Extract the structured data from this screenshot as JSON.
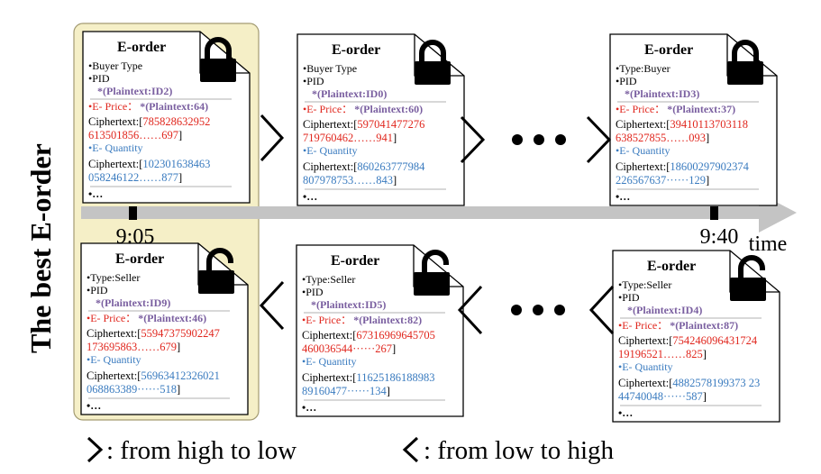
{
  "side_title": "The best E-order",
  "time_label": "time",
  "timeline": {
    "start_time": "9:05",
    "end_time": "9:40"
  },
  "legend": {
    "gt_symbol": ">",
    "gt_text": ": from high to low",
    "lt_symbol": "<",
    "lt_text": ": from low to high"
  },
  "colors": {
    "price": "#e0261d",
    "quantity": "#3a7bbf",
    "plaintext": "#7a5fa0",
    "highlight": "#f5efc7",
    "highlight_border": "#a39b72",
    "arrow": "#c4c4c4"
  },
  "orders": [
    {
      "title": "E-order",
      "type": "•Buyer Type",
      "pid_label": "•PID",
      "pid": "*(Plaintext:ID2)",
      "price_label": "•E- Price：",
      "price_plain": "*(Plaintext:64)",
      "price_cipher_label": "Ciphertext:[",
      "price_cipher_1": "785828632952",
      "price_cipher_2": "613501856……697",
      "price_cipher_end": "]",
      "qty_label": "•E- Quantity",
      "qty_cipher_label": "Ciphertext:[",
      "qty_cipher_1": "102301638463",
      "qty_cipher_2": "058246122……877",
      "qty_cipher_end": "]",
      "more": "•…",
      "lock": "closed"
    },
    {
      "title": "E-order",
      "type": "•Buyer Type",
      "pid_label": "•PID",
      "pid": "*(Plaintext:ID0)",
      "price_label": "•E- Price：",
      "price_plain": "*(Plaintext:60)",
      "price_cipher_label": "Ciphertext:[",
      "price_cipher_1": "597041477276",
      "price_cipher_2": "719760462……941",
      "price_cipher_end": "]",
      "qty_label": "•E- Quantity",
      "qty_cipher_label": "Ciphertext:[",
      "qty_cipher_1": "860263777984",
      "qty_cipher_2": "807978753……843",
      "qty_cipher_end": "]",
      "more": "•…",
      "lock": "closed"
    },
    {
      "title": "E-order",
      "type": "•Type:Buyer",
      "pid_label": "•PID",
      "pid": "*(Plaintext:ID3)",
      "price_label": "•E- Price：",
      "price_plain": "*(Plaintext:37)",
      "price_cipher_label": "Ciphertext:[",
      "price_cipher_1": "39410113703118",
      "price_cipher_2": "638527855……093",
      "price_cipher_end": "]",
      "qty_label": "•E- Quantity",
      "qty_cipher_label": "Ciphertext:[",
      "qty_cipher_1": "18600297902374",
      "qty_cipher_2": "226567637······129",
      "qty_cipher_end": "]",
      "more": "•…",
      "lock": "closed"
    },
    {
      "title": "E-order",
      "type": "•Type:Seller",
      "pid_label": "•PID",
      "pid": "*(Plaintext:ID9)",
      "price_label": "•E- Price：",
      "price_plain": "*(Plaintext:46)",
      "price_cipher_label": "Ciphertext:[",
      "price_cipher_1": "55947375902247",
      "price_cipher_2": "173695863……679",
      "price_cipher_end": "]",
      "qty_label": "•E- Quantity",
      "qty_cipher_label": "Ciphertext:[",
      "qty_cipher_1": "56963412326021",
      "qty_cipher_2": "068863389······518",
      "qty_cipher_end": "]",
      "more": "•…",
      "lock": "open"
    },
    {
      "title": "E-order",
      "type": "•Type:Seller",
      "pid_label": "•PID",
      "pid": "*(Plaintext:ID5)",
      "price_label": "•E- Price：",
      "price_plain": "*(Plaintext:82)",
      "price_cipher_label": "Ciphertext:[",
      "price_cipher_1": "67316969645705",
      "price_cipher_2": "460036544······267",
      "price_cipher_end": "]",
      "qty_label": "•E- Quantity",
      "qty_cipher_label": "Ciphertext:[",
      "qty_cipher_1": "11625186188983",
      "qty_cipher_2": "89160477······134",
      "qty_cipher_end": "]",
      "more": "•…",
      "lock": "open"
    },
    {
      "title": "E-order",
      "type": "•Type:Seller",
      "pid_label": "•PID",
      "pid": "*(Plaintext:ID4)",
      "price_label": "•E- Price：",
      "price_plain": "*(Plaintext:87)",
      "price_cipher_label": "Ciphertext:[",
      "price_cipher_1": "754246096431724",
      "price_cipher_2": "19196521……825",
      "price_cipher_end": "]",
      "qty_label": "•E- Quantity",
      "qty_cipher_label": "Ciphertext:[",
      "qty_cipher_1": "4882578199373 23",
      "qty_cipher_2": "44740048······587",
      "qty_cipher_end": "]",
      "more": "•…",
      "lock": "open"
    }
  ]
}
